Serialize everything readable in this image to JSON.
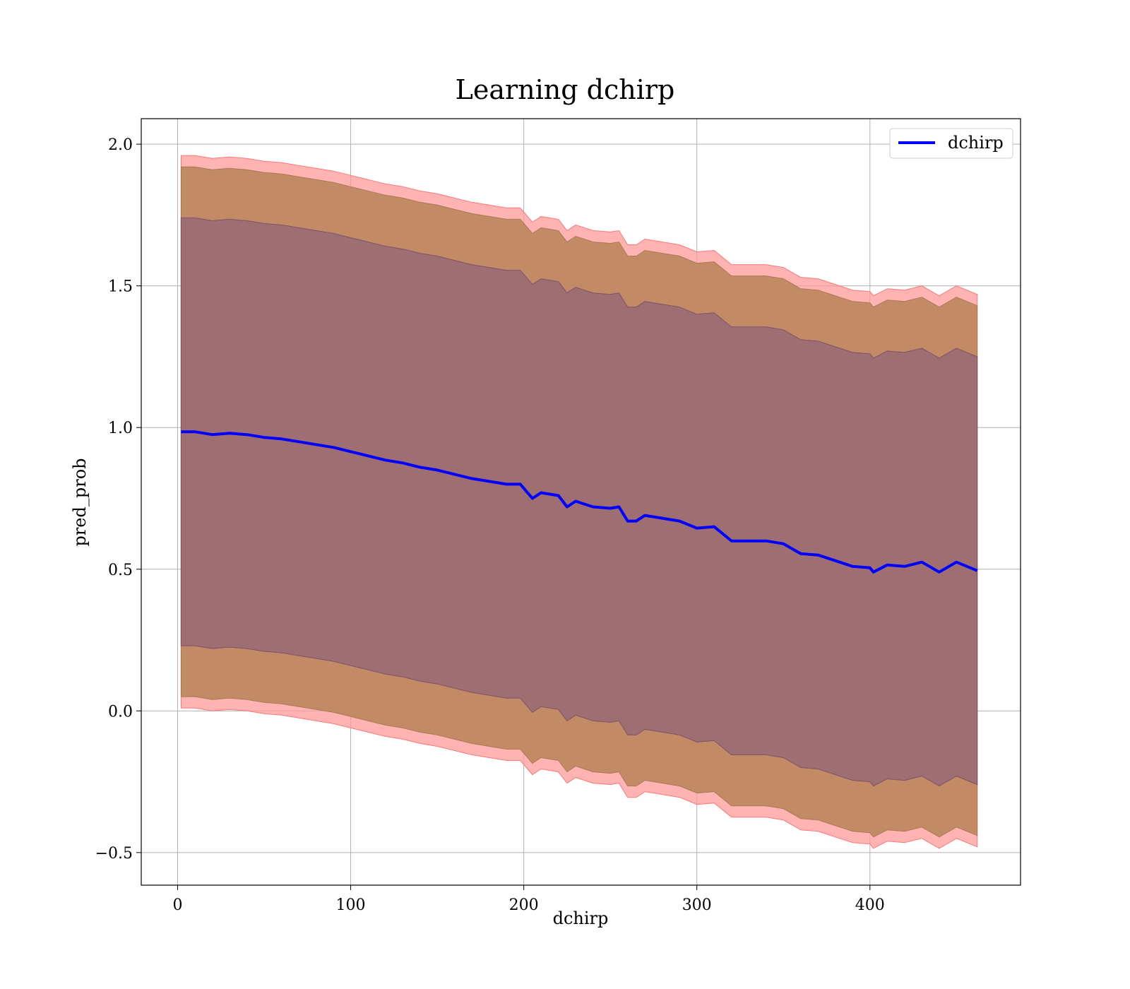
{
  "chart_data": {
    "type": "line",
    "title": "Learning dchirp",
    "xlabel": "dchirp",
    "ylabel": "pred_prob",
    "xlim": [
      -21,
      487
    ],
    "ylim": [
      -0.615,
      2.09
    ],
    "xticks": [
      0,
      100,
      200,
      300,
      400
    ],
    "xtick_labels": [
      "0",
      "100",
      "200",
      "300",
      "400"
    ],
    "yticks": [
      -0.5,
      0.0,
      0.5,
      1.0,
      1.5,
      2.0
    ],
    "ytick_labels": [
      "−0.5",
      "0.0",
      "0.5",
      "1.0",
      "1.5",
      "2.0"
    ],
    "grid": true,
    "legend": {
      "position": "top-right",
      "entries": [
        "dchirp"
      ]
    },
    "series": [
      {
        "name": "dchirp",
        "color": "#0000ff",
        "x": [
          2,
          10,
          20,
          30,
          40,
          50,
          60,
          70,
          80,
          90,
          100,
          110,
          120,
          130,
          140,
          150,
          160,
          170,
          180,
          190,
          198,
          205,
          210,
          220,
          225,
          230,
          240,
          250,
          255,
          260,
          265,
          270,
          280,
          290,
          300,
          310,
          320,
          330,
          340,
          350,
          360,
          370,
          380,
          390,
          400,
          402,
          410,
          420,
          430,
          440,
          450,
          462
        ],
        "mean": [
          0.985,
          0.985,
          0.975,
          0.98,
          0.975,
          0.965,
          0.96,
          0.95,
          0.94,
          0.93,
          0.915,
          0.9,
          0.885,
          0.875,
          0.86,
          0.85,
          0.835,
          0.82,
          0.81,
          0.8,
          0.8,
          0.75,
          0.77,
          0.76,
          0.72,
          0.74,
          0.72,
          0.715,
          0.72,
          0.67,
          0.67,
          0.69,
          0.68,
          0.67,
          0.645,
          0.65,
          0.6,
          0.6,
          0.6,
          0.59,
          0.555,
          0.55,
          0.53,
          0.51,
          0.505,
          0.49,
          0.515,
          0.51,
          0.525,
          0.49,
          0.525,
          0.495
        ],
        "band_1sigma_half_width": 0.755,
        "band_2sigma_half_width": 0.935,
        "band_3sigma_half_width": 0.975
      }
    ],
    "band_colors": {
      "outer": "#ff9999",
      "middle": "#c38a66",
      "inner": "#9e6e73"
    }
  }
}
